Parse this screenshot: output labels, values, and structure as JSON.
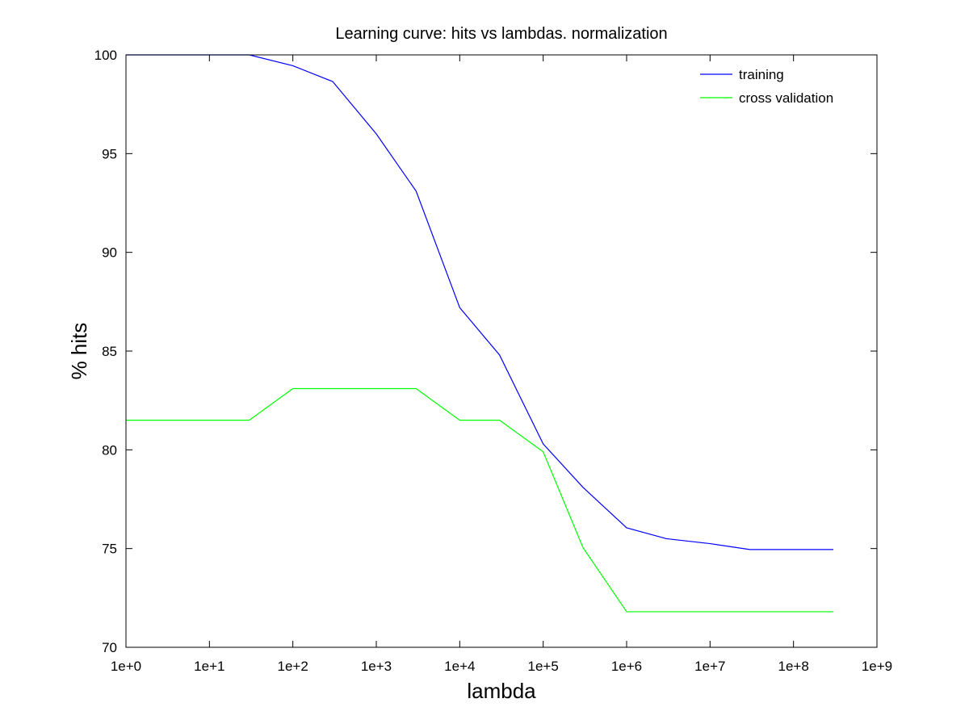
{
  "chart_data": {
    "type": "line",
    "title": "Learning curve: hits vs lambdas. normalization",
    "xlabel": "lambda",
    "ylabel": "% hits",
    "xscale": "log",
    "xlim": [
      1,
      1000000000
    ],
    "ylim": [
      70,
      100
    ],
    "xticks": [
      1,
      10,
      100,
      1000,
      10000,
      100000,
      1000000,
      10000000,
      100000000,
      1000000000
    ],
    "xtick_labels": [
      "1e+0",
      "1e+1",
      "1e+2",
      "1e+3",
      "1e+4",
      "1e+5",
      "1e+6",
      "1e+7",
      "1e+8",
      "1e+9"
    ],
    "yticks": [
      70,
      75,
      80,
      85,
      90,
      95,
      100
    ],
    "ytick_labels": [
      "70",
      "75",
      "80",
      "85",
      "90",
      "95",
      "100"
    ],
    "grid": false,
    "legend_position": "top-right",
    "x": [
      0,
      0.3,
      1,
      3,
      10,
      30,
      100,
      300,
      1000,
      3000,
      10000,
      30000,
      100000,
      300000,
      1000000,
      3000000,
      10000000,
      30000000,
      100000000,
      300000000
    ],
    "series": [
      {
        "name": "training",
        "color": "#0000ff",
        "values": [
          100,
          100,
          100,
          100,
          100,
          100,
          99.45,
          98.65,
          96.0,
          93.1,
          87.2,
          84.8,
          80.3,
          78.1,
          76.05,
          75.5,
          75.25,
          74.95,
          74.95,
          74.95
        ]
      },
      {
        "name": "cross validation",
        "color": "#00ff00",
        "values": [
          81.5,
          81.5,
          81.5,
          81.5,
          81.5,
          81.5,
          83.1,
          83.1,
          83.1,
          83.1,
          81.5,
          81.5,
          79.9,
          75.05,
          71.8,
          71.8,
          71.8,
          71.8,
          71.8,
          71.8
        ]
      }
    ]
  }
}
